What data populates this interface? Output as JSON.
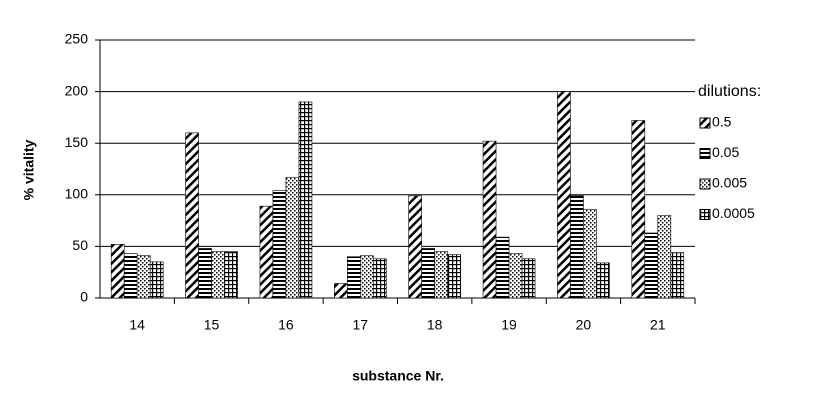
{
  "chart_data": {
    "type": "bar",
    "x_label": "substance Nr.",
    "y_label": "% vitality",
    "legend_title": "dilutions:",
    "categories": [
      "14",
      "15",
      "16",
      "17",
      "18",
      "19",
      "20",
      "21"
    ],
    "series": [
      {
        "name": "0.5",
        "pattern": "diagonal",
        "color": "#000000",
        "values": [
          52,
          160,
          89,
          14,
          99,
          152,
          200,
          172
        ]
      },
      {
        "name": "0.05",
        "pattern": "horizontal",
        "color": "#000000",
        "values": [
          43,
          48,
          104,
          40,
          48,
          59,
          99,
          63
        ]
      },
      {
        "name": "0.005",
        "pattern": "dots",
        "color": "#000000",
        "values": [
          41,
          45,
          117,
          41,
          45,
          43,
          86,
          80
        ]
      },
      {
        "name": "0.0005",
        "pattern": "grid",
        "color": "#000000",
        "values": [
          35,
          45,
          190,
          38,
          42,
          38,
          34,
          44
        ]
      }
    ],
    "ylim": [
      0,
      250
    ],
    "yticks": [
      0,
      50,
      100,
      150,
      200,
      250
    ],
    "grid": true,
    "legend": "right"
  }
}
